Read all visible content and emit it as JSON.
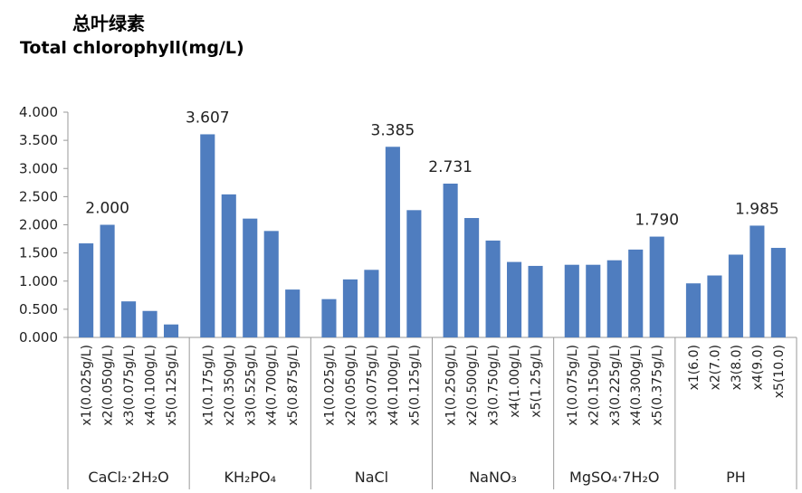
{
  "title_cn": "总叶绿素",
  "title_en": "Total chlorophyll(mg/L)",
  "colors": {
    "bar": "#4f7dbf",
    "axis": "#9a9a9a"
  },
  "chart_data": {
    "type": "bar",
    "ylim": [
      0,
      4
    ],
    "yticks": [
      "0.000",
      "0.500",
      "1.000",
      "1.500",
      "2.000",
      "2.500",
      "3.000",
      "3.500",
      "4.000"
    ],
    "grid": false,
    "legend": "none",
    "groups": [
      {
        "name": "CaCl₂·2H₂O",
        "categories": [
          "x1(0.025g/L)",
          "x2(0.050g/L)",
          "x3(0.075g/L)",
          "x4(0.100g/L)",
          "x5(0.125g/L)"
        ],
        "values": [
          1.67,
          2.0,
          0.64,
          0.47,
          0.23
        ],
        "label_index": 1,
        "label": "2.000"
      },
      {
        "name": "KH₂PO₄",
        "categories": [
          "x1(0.175g/L)",
          "x2(0.350g/L)",
          "x3(0.525g/L)",
          "x4(0.700g/L)",
          "x5(0.875g/L)"
        ],
        "values": [
          3.607,
          2.54,
          2.11,
          1.89,
          0.85
        ],
        "label_index": 0,
        "label": "3.607"
      },
      {
        "name": "NaCl",
        "categories": [
          "x1(0.025g/L)",
          "x2(0.050g/L)",
          "x3(0.075g/L)",
          "x4(0.100g/L)",
          "x5(0.125g/L)"
        ],
        "values": [
          0.68,
          1.03,
          1.2,
          3.385,
          2.26
        ],
        "label_index": 3,
        "label": "3.385"
      },
      {
        "name": "NaNO₃",
        "categories": [
          "x1(0.250g/L)",
          "x2(0.500g/L)",
          "x3(0.750g/L)",
          "x4(1.00g/L)",
          "x5(1.25g/L)"
        ],
        "values": [
          2.731,
          2.12,
          1.72,
          1.34,
          1.27
        ],
        "label_index": 0,
        "label": "2.731"
      },
      {
        "name": "MgSO₄·7H₂O",
        "categories": [
          "x1(0.075g/L)",
          "x2(0.150g/L)",
          "x3(0.225g/L)",
          "x4(0.300g/L)",
          "x5(0.375g/L)"
        ],
        "values": [
          1.29,
          1.29,
          1.37,
          1.56,
          1.79
        ],
        "label_index": 4,
        "label": "1.790"
      },
      {
        "name": "PH",
        "categories": [
          "x1(6.0)",
          "x2(7.0)",
          "x3(8.0)",
          "x4(9.0)",
          "x5(10.0)"
        ],
        "values": [
          0.96,
          1.1,
          1.47,
          1.985,
          1.59
        ],
        "label_index": 3,
        "label": "1.985"
      }
    ]
  }
}
